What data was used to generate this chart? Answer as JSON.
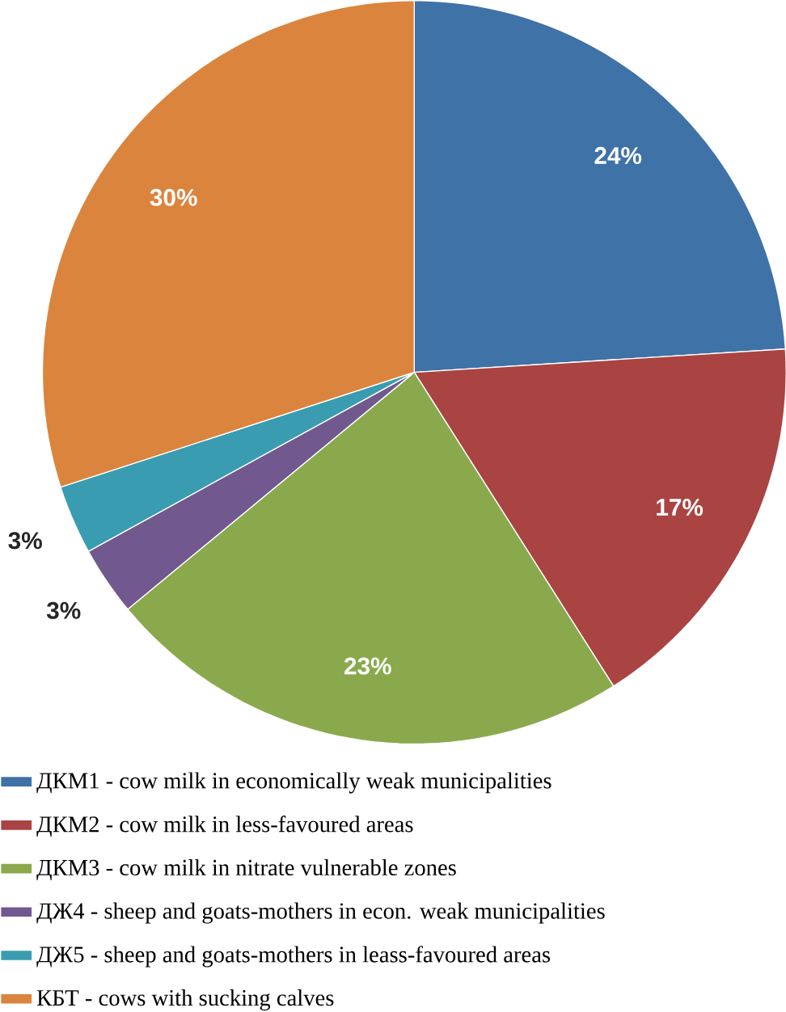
{
  "chart_data": {
    "type": "pie",
    "categories": [
      "ДКМ1 - cow milk in economically weak municipalities",
      "ДКМ2 - cow milk in less-favoured areas",
      "ДКМ3 - cow milk in nitrate vulnerable zones",
      "ДЖ4 - sheep and goats-mothers in econ. weak municipalities",
      "ДЖ5 - sheep and goats-mothers in leass-favoured areas",
      "КБТ - cows with sucking calves"
    ],
    "values": [
      24,
      17,
      23,
      3,
      3,
      30
    ],
    "value_labels": [
      "24%",
      "17%",
      "23%",
      "3%",
      "3%",
      "30%"
    ],
    "colors": [
      "#3f72a6",
      "#a94442",
      "#8aa94d",
      "#71588f",
      "#3a9cb0",
      "#db843d"
    ],
    "legend": "bottom"
  }
}
